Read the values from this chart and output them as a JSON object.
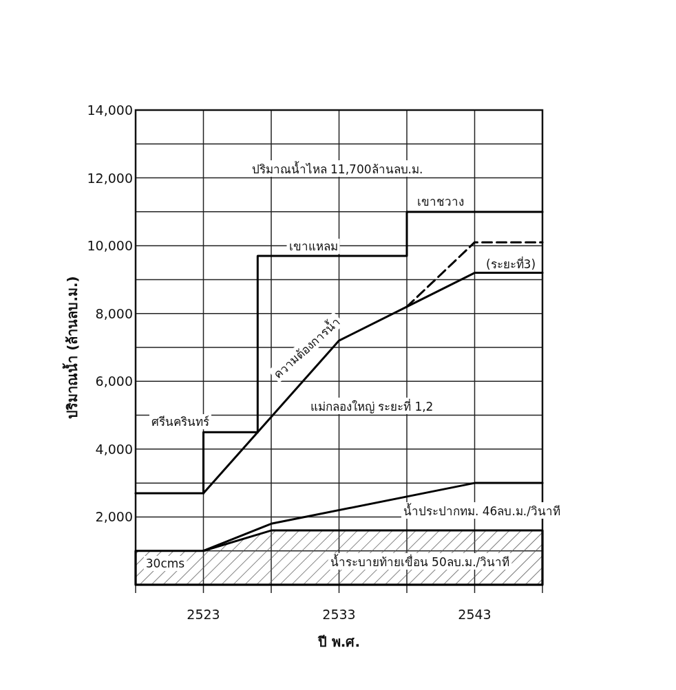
{
  "chart_data": {
    "type": "line",
    "xlabel": "ปี พ.ศ.",
    "ylabel": "ปริมาณน้ำ (ล้านลบ.ม.)",
    "xlim": [
      2518,
      2548
    ],
    "ylim": [
      0,
      14000
    ],
    "xticks": [
      {
        "value": 2518,
        "label": null
      },
      2523,
      {
        "value": 2528,
        "label": null
      },
      2533,
      {
        "value": 2538,
        "label": null
      },
      2543,
      {
        "value": 2548,
        "label": null
      }
    ],
    "yticks": [
      {
        "value": 0,
        "label": null
      },
      {
        "value": 1000,
        "label": null
      },
      {
        "value": 2000,
        "label": "2,000"
      },
      {
        "value": 3000,
        "label": null
      },
      {
        "value": 4000,
        "label": "4,000"
      },
      {
        "value": 5000,
        "label": null
      },
      {
        "value": 6000,
        "label": "6,000"
      },
      {
        "value": 7000,
        "label": null
      },
      {
        "value": 8000,
        "label": "8,000"
      },
      {
        "value": 9000,
        "label": null
      },
      {
        "value": 10000,
        "label": "10,000"
      },
      {
        "value": 11000,
        "label": null
      },
      {
        "value": 12000,
        "label": "12,000"
      },
      {
        "value": 13000,
        "label": null
      },
      {
        "value": 14000,
        "label": "14,000"
      }
    ],
    "grid": true,
    "series": [
      {
        "type": "step",
        "color": "#000000",
        "x": [
          2518,
          2523,
          2527,
          2538,
          2548
        ],
        "values": [
          2700,
          4500,
          9700,
          11000,
          11000
        ]
      },
      {
        "color": "#000000",
        "x": [
          2523,
          2527,
          2533,
          2538,
          2543,
          2548
        ],
        "values": [
          2700,
          4500,
          7200,
          8200,
          9200,
          9200
        ]
      },
      {
        "color": "#000000",
        "line_style": "dashed",
        "x": [
          2538,
          2543,
          2548
        ],
        "values": [
          8200,
          10100,
          10100
        ]
      },
      {
        "color": "#000000",
        "x": [
          2523,
          2528,
          2543,
          2548
        ],
        "values": [
          1000,
          1800,
          3000,
          3000
        ]
      },
      {
        "type": "area",
        "color": "#000000",
        "x": [
          2518,
          2523,
          2528,
          2548
        ],
        "values": [
          1000,
          1000,
          1600,
          1600
        ]
      }
    ],
    "annotations": [
      "ปริมาณน้ำไหล 11,700ล้านลบ.ม.",
      "ศรีนครินทร์",
      "เขาแหลม",
      "เขาชวาง",
      "ความต้องการน้ำ",
      "แม่กลองใหญ่ ระยะที่ 1,2",
      "(ระยะที่3)",
      "น้ำประปากทม. 46ลบ.ม./วินาที",
      "น้ำระบายท้ายเขื่อน 50ลบ.ม./วินาที",
      "30cms"
    ]
  }
}
